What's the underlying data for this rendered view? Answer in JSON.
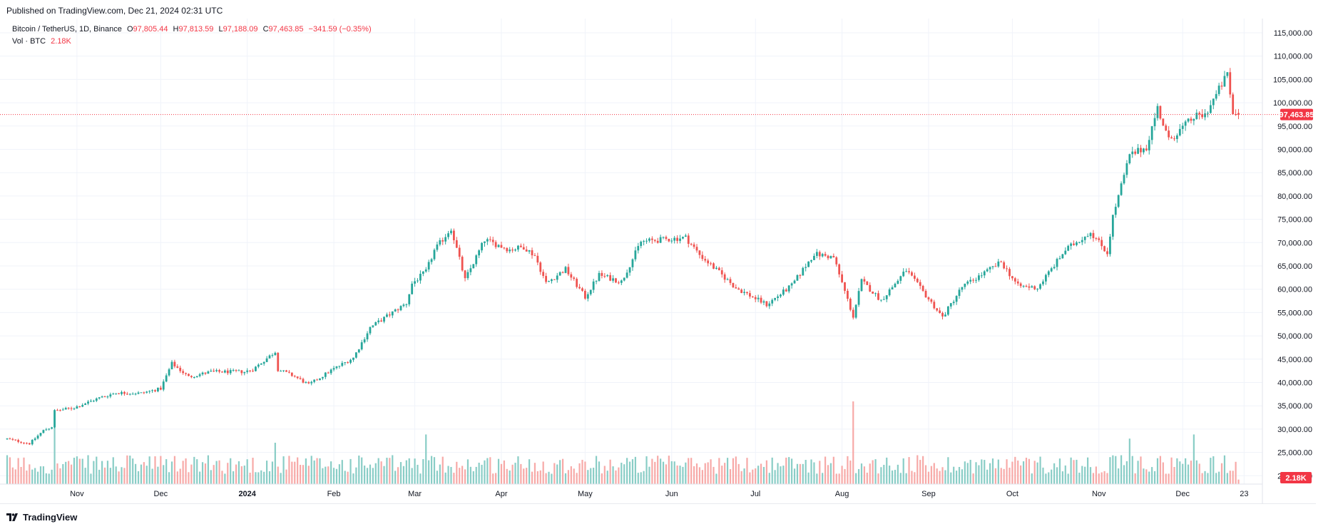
{
  "header": {
    "published": "Published on TradingView.com, Dec 21, 2024 02:31 UTC"
  },
  "legend": {
    "symbol": "Bitcoin / TetherUS, 1D, Binance",
    "open_key": "O",
    "open": "97,805.44",
    "high_key": "H",
    "high": "97,813.59",
    "low_key": "L",
    "low": "97,188.09",
    "close_key": "C",
    "close": "97,463.85",
    "change": "−341.59 (−0.35%)",
    "vol_label": "Vol · BTC",
    "vol_value": "2.18K"
  },
  "price_axis": {
    "ticks": [
      "115,000.00",
      "110,000.00",
      "105,000.00",
      "100,000.00",
      "95,000.00",
      "90,000.00",
      "85,000.00",
      "80,000.00",
      "75,000.00",
      "70,000.00",
      "65,000.00",
      "60,000.00",
      "55,000.00",
      "50,000.00",
      "45,000.00",
      "40,000.00",
      "35,000.00",
      "30,000.00",
      "25,000.00",
      "20,000.00"
    ],
    "last_price_badge": "97,463.85",
    "volume_badge": "2.18K"
  },
  "time_axis": {
    "labels": [
      {
        "text": "Nov",
        "bold": false
      },
      {
        "text": "Dec",
        "bold": false
      },
      {
        "text": "2024",
        "bold": true
      },
      {
        "text": "Feb",
        "bold": false
      },
      {
        "text": "Mar",
        "bold": false
      },
      {
        "text": "Apr",
        "bold": false
      },
      {
        "text": "May",
        "bold": false
      },
      {
        "text": "Jun",
        "bold": false
      },
      {
        "text": "Jul",
        "bold": false
      },
      {
        "text": "Aug",
        "bold": false
      },
      {
        "text": "Sep",
        "bold": false
      },
      {
        "text": "Oct",
        "bold": false
      },
      {
        "text": "Nov",
        "bold": false
      },
      {
        "text": "Dec",
        "bold": false
      },
      {
        "text": "23",
        "bold": false
      }
    ]
  },
  "footer": {
    "brand": "TradingView"
  },
  "colors": {
    "up": "#26a69a",
    "down": "#ef5350",
    "up_vol": "#89cdc6",
    "down_vol": "#f7a9a7",
    "last_price": "#f23645",
    "grid": "#f0f3fa"
  },
  "chart_data": {
    "type": "candlestick",
    "title": "Bitcoin / TetherUS, 1D, Binance",
    "price_unit": "USDT",
    "ylim": [
      20000,
      115000
    ],
    "last_price": 97463.85,
    "last_ohlc": {
      "open": 97805.44,
      "high": 97813.59,
      "low": 97188.09,
      "close": 97463.85
    },
    "volume_last": "2.18K",
    "x_range": [
      "2023-10-07",
      "2024-12-21"
    ],
    "close_path": [
      [
        "2023-10-07",
        27900
      ],
      [
        "2023-10-15",
        26900
      ],
      [
        "2023-10-20",
        29700
      ],
      [
        "2023-10-23",
        30500
      ],
      [
        "2023-10-24",
        33900
      ],
      [
        "2023-10-31",
        34600
      ],
      [
        "2023-11-09",
        36700
      ],
      [
        "2023-11-15",
        37800
      ],
      [
        "2023-11-24",
        37700
      ],
      [
        "2023-12-01",
        38700
      ],
      [
        "2023-12-05",
        44100
      ],
      [
        "2023-12-11",
        41200
      ],
      [
        "2023-12-19",
        42300
      ],
      [
        "2023-12-31",
        42300
      ],
      [
        "2024-01-03",
        42800
      ],
      [
        "2024-01-11",
        46600
      ],
      [
        "2024-01-12",
        42800
      ],
      [
        "2024-01-18",
        41300
      ],
      [
        "2024-01-23",
        39500
      ],
      [
        "2024-01-31",
        42600
      ],
      [
        "2024-02-08",
        45300
      ],
      [
        "2024-02-14",
        51800
      ],
      [
        "2024-02-27",
        57000
      ],
      [
        "2024-02-29",
        61200
      ],
      [
        "2024-03-05",
        63800
      ],
      [
        "2024-03-08",
        68300
      ],
      [
        "2024-03-14",
        73100
      ],
      [
        "2024-03-19",
        62000
      ],
      [
        "2024-03-26",
        70600
      ],
      [
        "2024-04-04",
        68500
      ],
      [
        "2024-04-09",
        69100
      ],
      [
        "2024-04-13",
        67200
      ],
      [
        "2024-04-17",
        61300
      ],
      [
        "2024-04-24",
        64300
      ],
      [
        "2024-05-01",
        58300
      ],
      [
        "2024-05-06",
        63100
      ],
      [
        "2024-05-14",
        61600
      ],
      [
        "2024-05-21",
        70200
      ],
      [
        "2024-06-06",
        71100
      ],
      [
        "2024-06-11",
        67400
      ],
      [
        "2024-06-24",
        60300
      ],
      [
        "2024-07-05",
        56700
      ],
      [
        "2024-07-14",
        60800
      ],
      [
        "2024-07-22",
        67600
      ],
      [
        "2024-07-29",
        66800
      ],
      [
        "2024-08-05",
        54100
      ],
      [
        "2024-08-08",
        61800
      ],
      [
        "2024-08-15",
        57600
      ],
      [
        "2024-08-24",
        64100
      ],
      [
        "2024-09-06",
        54000
      ],
      [
        "2024-09-13",
        60500
      ],
      [
        "2024-09-27",
        65800
      ],
      [
        "2024-10-03",
        60700
      ],
      [
        "2024-10-10",
        60300
      ],
      [
        "2024-10-20",
        68400
      ],
      [
        "2024-10-29",
        72300
      ],
      [
        "2024-11-04",
        67800
      ],
      [
        "2024-11-06",
        75600
      ],
      [
        "2024-11-12",
        88700
      ],
      [
        "2024-11-18",
        90500
      ],
      [
        "2024-11-22",
        98900
      ],
      [
        "2024-11-26",
        91900
      ],
      [
        "2024-12-05",
        96900
      ],
      [
        "2024-12-09",
        97400
      ],
      [
        "2024-12-17",
        106100
      ],
      [
        "2024-12-19",
        97500
      ],
      [
        "2024-12-21",
        97463.85
      ]
    ],
    "volume_peaks": [
      [
        "2023-10-24",
        29000
      ],
      [
        "2024-01-11",
        20000
      ],
      [
        "2024-03-05",
        24000
      ],
      [
        "2024-08-05",
        40000
      ],
      [
        "2024-11-12",
        22000
      ],
      [
        "2024-12-05",
        24000
      ]
    ]
  }
}
